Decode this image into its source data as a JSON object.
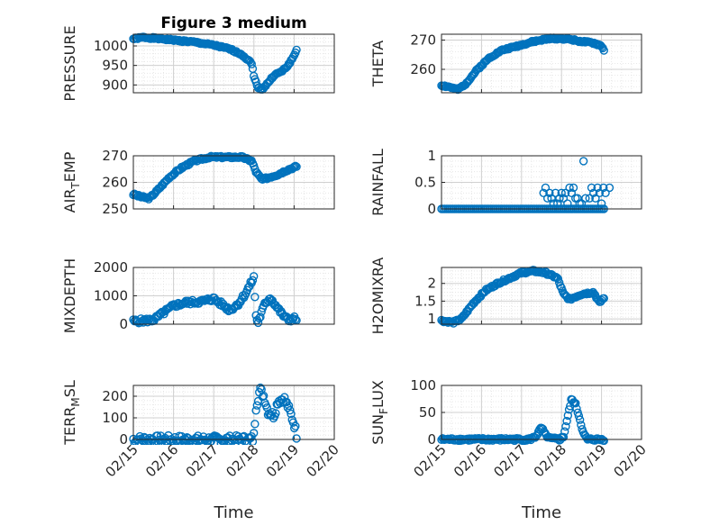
{
  "chart_data": [
    {
      "type": "scatter",
      "title": "Figure 3 medium",
      "ylabel": "PRESSURE",
      "ylabel_sub": "",
      "ylabel_after": "",
      "ylim": [
        880,
        1030
      ],
      "yticks": [
        900,
        950,
        1000
      ],
      "xlim": [
        "02/15",
        "02/19"
      ],
      "xticks": [],
      "xlabel": "",
      "anchors": [
        [
          0.0,
          1018
        ],
        [
          0.25,
          1022
        ],
        [
          0.5,
          1020
        ],
        [
          1.0,
          1015
        ],
        [
          1.5,
          1010
        ],
        [
          2.0,
          1002
        ],
        [
          2.4,
          992
        ],
        [
          2.7,
          978
        ],
        [
          2.95,
          955
        ],
        [
          3.0,
          920
        ],
        [
          3.1,
          895
        ],
        [
          3.2,
          888
        ],
        [
          3.35,
          905
        ],
        [
          3.5,
          925
        ],
        [
          3.7,
          935
        ],
        [
          3.85,
          950
        ],
        [
          4.0,
          975
        ],
        [
          4.06,
          990
        ]
      ],
      "x_range": [
        0.0,
        4.06
      ],
      "n": 150,
      "noise": 0.03,
      "seed": 1
    },
    {
      "type": "scatter",
      "title": "",
      "ylabel": "THETA",
      "ylabel_sub": "",
      "ylabel_after": "",
      "ylim": [
        252,
        272
      ],
      "yticks": [
        260,
        270
      ],
      "xlim": [
        "02/15",
        "02/19"
      ],
      "xticks": [],
      "xlabel": "",
      "anchors": [
        [
          0.0,
          254.5
        ],
        [
          0.2,
          254
        ],
        [
          0.4,
          253
        ],
        [
          0.6,
          255
        ],
        [
          0.9,
          260
        ],
        [
          1.2,
          264
        ],
        [
          1.5,
          266.5
        ],
        [
          1.9,
          268
        ],
        [
          2.3,
          269.5
        ],
        [
          2.7,
          270.5
        ],
        [
          3.0,
          270.5
        ],
        [
          3.2,
          270.3
        ],
        [
          3.5,
          269.5
        ],
        [
          3.8,
          269
        ],
        [
          4.0,
          268
        ],
        [
          4.06,
          266.5
        ]
      ],
      "x_range": [
        0.0,
        4.06
      ],
      "n": 150,
      "noise": 0.03,
      "seed": 2
    },
    {
      "type": "scatter",
      "title": "",
      "ylabel": "AIR",
      "ylabel_sub": "T",
      "ylabel_after": "EMP",
      "ylim": [
        250,
        270
      ],
      "yticks": [
        250,
        260,
        270
      ],
      "xlim": [
        "02/15",
        "02/19"
      ],
      "xticks": [],
      "xlabel": "",
      "anchors": [
        [
          0.0,
          255.5
        ],
        [
          0.2,
          254.5
        ],
        [
          0.4,
          254
        ],
        [
          0.6,
          257
        ],
        [
          0.9,
          262
        ],
        [
          1.2,
          265.5
        ],
        [
          1.5,
          268
        ],
        [
          1.9,
          269.5
        ],
        [
          2.3,
          269.5
        ],
        [
          2.7,
          269.5
        ],
        [
          2.95,
          268
        ],
        [
          3.05,
          264
        ],
        [
          3.2,
          261
        ],
        [
          3.4,
          262
        ],
        [
          3.6,
          263
        ],
        [
          3.8,
          264.5
        ],
        [
          4.06,
          266
        ]
      ],
      "x_range": [
        0.0,
        4.06
      ],
      "n": 150,
      "noise": 0.04,
      "seed": 3
    },
    {
      "type": "scatter",
      "title": "",
      "ylabel": "RAINFALL",
      "ylabel_sub": "",
      "ylabel_after": "",
      "ylim": [
        0,
        1
      ],
      "yticks": [
        0,
        0.5,
        1
      ],
      "xlim": [
        "02/15",
        "02/19"
      ],
      "xticks": [],
      "xlabel": "",
      "anchors": [
        [
          0.0,
          0
        ],
        [
          4.06,
          0
        ]
      ],
      "x_range": [
        0.0,
        4.06
      ],
      "n": 100,
      "noise": 0,
      "seed": 4,
      "extra_points": [
        [
          2.55,
          0.3
        ],
        [
          2.6,
          0.4
        ],
        [
          2.65,
          0.2
        ],
        [
          2.7,
          0.3
        ],
        [
          2.75,
          0.2
        ],
        [
          2.8,
          0.1
        ],
        [
          2.85,
          0.3
        ],
        [
          2.9,
          0.1
        ],
        [
          2.95,
          0.2
        ],
        [
          3.0,
          0.3
        ],
        [
          3.05,
          0.2
        ],
        [
          3.1,
          0.3
        ],
        [
          3.15,
          0.1
        ],
        [
          3.2,
          0.4
        ],
        [
          3.25,
          0.3
        ],
        [
          3.3,
          0.4
        ],
        [
          3.35,
          0.2
        ],
        [
          3.4,
          0.2
        ],
        [
          3.45,
          0.1
        ],
        [
          3.5,
          0.1
        ],
        [
          3.55,
          0.9
        ],
        [
          3.6,
          0.2
        ],
        [
          3.7,
          0.2
        ],
        [
          3.75,
          0.4
        ],
        [
          3.8,
          0.3
        ],
        [
          3.85,
          0.2
        ],
        [
          3.9,
          0.4
        ],
        [
          3.95,
          0.3
        ],
        [
          4.0,
          0.1
        ],
        [
          4.05,
          0.4
        ],
        [
          4.1,
          0.3
        ],
        [
          4.2,
          0.4
        ]
      ]
    },
    {
      "type": "scatter",
      "title": "",
      "ylabel": "MIXDEPTH",
      "ylabel_sub": "",
      "ylabel_after": "",
      "ylim": [
        0,
        2000
      ],
      "yticks": [
        0,
        1000,
        2000
      ],
      "xlim": [
        "02/15",
        "02/19"
      ],
      "xticks": [],
      "xlabel": "",
      "anchors": [
        [
          0.0,
          100
        ],
        [
          0.5,
          150
        ],
        [
          0.8,
          450
        ],
        [
          1.0,
          650
        ],
        [
          1.3,
          760
        ],
        [
          1.7,
          800
        ],
        [
          2.0,
          900
        ],
        [
          2.2,
          700
        ],
        [
          2.4,
          500
        ],
        [
          2.6,
          700
        ],
        [
          2.8,
          1100
        ],
        [
          3.0,
          1650
        ],
        [
          3.05,
          300
        ],
        [
          3.1,
          50
        ],
        [
          3.25,
          650
        ],
        [
          3.4,
          950
        ],
        [
          3.55,
          650
        ],
        [
          3.7,
          350
        ],
        [
          3.85,
          150
        ],
        [
          4.0,
          200
        ],
        [
          4.06,
          180
        ]
      ],
      "x_range": [
        0.0,
        4.06
      ],
      "n": 150,
      "noise": 0.08,
      "seed": 5
    },
    {
      "type": "scatter",
      "title": "",
      "ylabel": "H2OMIXRA",
      "ylabel_sub": "",
      "ylabel_after": "",
      "ylim": [
        0.85,
        2.45
      ],
      "yticks": [
        1,
        1.5,
        2
      ],
      "xlim": [
        "02/15",
        "02/19"
      ],
      "xticks": [],
      "xlabel": "",
      "anchors": [
        [
          0.0,
          0.95
        ],
        [
          0.3,
          0.9
        ],
        [
          0.5,
          1.0
        ],
        [
          0.8,
          1.45
        ],
        [
          1.1,
          1.8
        ],
        [
          1.4,
          2.0
        ],
        [
          1.7,
          2.15
        ],
        [
          2.0,
          2.3
        ],
        [
          2.3,
          2.35
        ],
        [
          2.6,
          2.3
        ],
        [
          2.9,
          2.15
        ],
        [
          3.05,
          1.7
        ],
        [
          3.2,
          1.55
        ],
        [
          3.5,
          1.7
        ],
        [
          3.8,
          1.75
        ],
        [
          3.95,
          1.45
        ],
        [
          4.06,
          1.6
        ]
      ],
      "x_range": [
        0.0,
        4.06
      ],
      "n": 150,
      "noise": 0.04,
      "seed": 6
    },
    {
      "type": "scatter",
      "title": "",
      "ylabel": "TERR",
      "ylabel_sub": "M",
      "ylabel_after": "SL",
      "ylim": [
        0,
        250
      ],
      "yticks": [
        0,
        100,
        200
      ],
      "xlim": [
        "02/15",
        "02/20"
      ],
      "xticks": [
        "02/15",
        "02/16",
        "02/17",
        "02/18",
        "02/19",
        "02/20"
      ],
      "xlabel": "Time",
      "anchors": [
        [
          0.0,
          0
        ],
        [
          2.98,
          0
        ],
        [
          3.0,
          20
        ],
        [
          3.05,
          150
        ],
        [
          3.15,
          230
        ],
        [
          3.25,
          200
        ],
        [
          3.35,
          130
        ],
        [
          3.5,
          110
        ],
        [
          3.6,
          180
        ],
        [
          3.75,
          190
        ],
        [
          3.85,
          150
        ],
        [
          3.95,
          100
        ],
        [
          4.02,
          60
        ],
        [
          4.06,
          20
        ]
      ],
      "x_range": [
        0.0,
        4.06
      ],
      "n": 150,
      "noise": 0.15,
      "seed": 7
    },
    {
      "type": "scatter",
      "title": "",
      "ylabel": "SUN",
      "ylabel_sub": "F",
      "ylabel_after": "LUX",
      "ylim": [
        0,
        100
      ],
      "yticks": [
        0,
        50,
        100
      ],
      "xlim": [
        "02/15",
        "02/20"
      ],
      "xticks": [
        "02/15",
        "02/16",
        "02/17",
        "02/18",
        "02/19",
        "02/20"
      ],
      "xlabel": "Time",
      "anchors": [
        [
          0.0,
          0
        ],
        [
          2.2,
          0
        ],
        [
          2.35,
          5
        ],
        [
          2.5,
          22
        ],
        [
          2.6,
          8
        ],
        [
          2.7,
          2
        ],
        [
          2.95,
          0
        ],
        [
          3.05,
          5
        ],
        [
          3.15,
          40
        ],
        [
          3.25,
          75
        ],
        [
          3.35,
          65
        ],
        [
          3.45,
          40
        ],
        [
          3.55,
          10
        ],
        [
          3.65,
          0
        ],
        [
          4.06,
          0
        ]
      ],
      "x_range": [
        0.0,
        4.06
      ],
      "n": 150,
      "noise": 0.05,
      "seed": 8
    }
  ],
  "colors": {
    "marker": "#0072bd",
    "axis": "#262626",
    "grid": "#d0d0d0"
  }
}
